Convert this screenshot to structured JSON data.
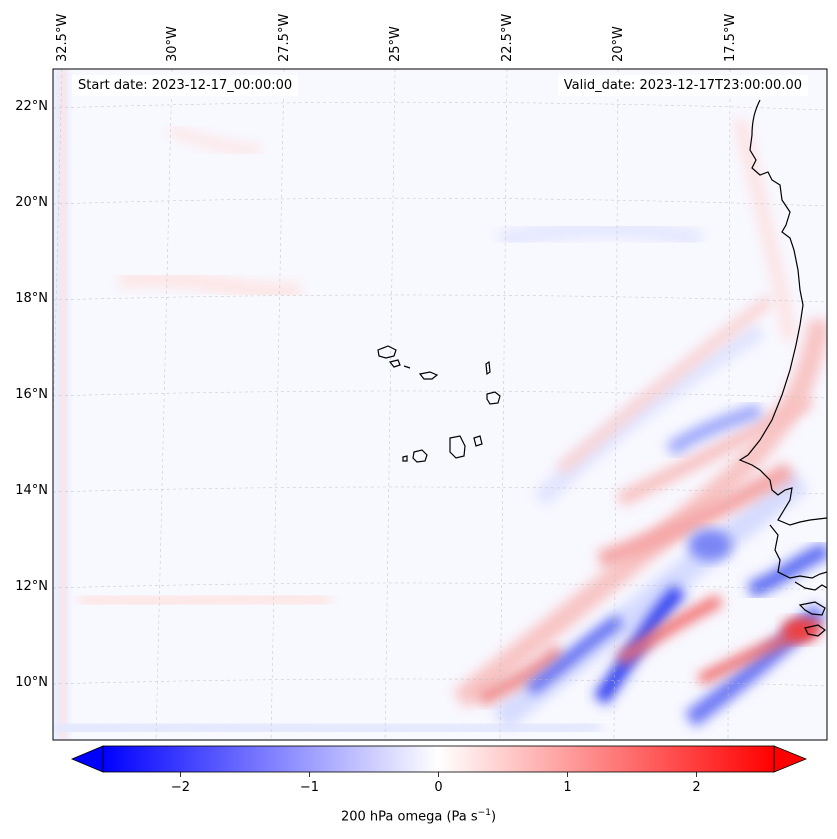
{
  "map": {
    "start_date": "Start date: 2023-12-17_00:00:00",
    "valid_date": "Valid_date: 2023-12-17T23:00:00.00",
    "lon_labels": [
      "32.5°W",
      "30°W",
      "27.5°W",
      "25°W",
      "22.5°W",
      "20°W",
      "17.5°W"
    ],
    "lat_labels": [
      "22°N",
      "20°N",
      "18°N",
      "16°N",
      "14°N",
      "12°N",
      "10°N"
    ],
    "lon_values": [
      -32.5,
      -30,
      -27.5,
      -25,
      -22.5,
      -20,
      -17.5
    ],
    "lat_values": [
      22,
      20,
      18,
      16,
      14,
      12,
      10
    ]
  },
  "colorbar": {
    "ticks": [
      "−2",
      "−1",
      "0",
      "1",
      "2"
    ],
    "tick_values": [
      -2,
      -1,
      0,
      1,
      2
    ],
    "range": [
      -2.6,
      2.6
    ],
    "label_prefix": "200 hPa omega (Pa s",
    "label_exp": "−1",
    "label_suffix": ")",
    "colormap": "bwr",
    "low_color": "#0000ff",
    "mid_color": "#ffffff",
    "high_color": "#ff0000"
  }
}
